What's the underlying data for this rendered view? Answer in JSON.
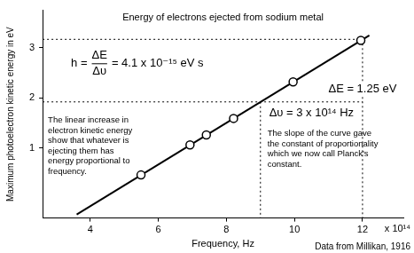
{
  "chart_data": {
    "type": "scatter",
    "title": "Energy of electrons ejected from sodium metal",
    "x_label": "Frequency, Hz",
    "y_label": "Maximum photoelectron kinetic energy in eV",
    "x_multiplier": "x 10¹⁴",
    "xlim": [
      2.6,
      13.2
    ],
    "xticks": [
      4,
      6,
      8,
      10,
      12
    ],
    "ylim": [
      -0.4,
      3.75
    ],
    "yticks": [
      1,
      2,
      3
    ],
    "grid": false,
    "series": [
      {
        "type": "scatter",
        "marker": "circle",
        "line_style": "none",
        "color": "#000000",
        "x": [
          5.49,
          6.93,
          7.41,
          8.21,
          9.96,
          11.95
        ],
        "values": [
          0.46,
          1.06,
          1.26,
          1.59,
          2.32,
          3.15
        ]
      },
      {
        "type": "line",
        "marker": "none",
        "line_style": "solid",
        "color": "#000000",
        "x": [
          3.6,
          12.2
        ],
        "values": [
          -0.33,
          3.25
        ]
      }
    ],
    "reference_points": {
      "x": [
        9,
        12
      ],
      "values": [
        1.92,
        3.17
      ]
    },
    "annotations": {
      "formula": {
        "lhs": "h =",
        "numerator": "ΔE",
        "denominator": "Δυ",
        "rhs": "= 4.1 x 10⁻¹⁵ eV s"
      },
      "delta_e": "ΔE = 1.25 eV",
      "delta_nu": "Δυ = 3 x 10¹⁴ Hz",
      "note_left": [
        "The linear increase in",
        "electron kinetic energy",
        "show that whatever is",
        "ejecting them has",
        "energy proportional to",
        "frequency."
      ],
      "note_right": [
        "The slope of the curve gave",
        "the constant of proportionality",
        "which we now call Planck's",
        "constant."
      ],
      "source": "Data from Millikan, 1916"
    }
  }
}
